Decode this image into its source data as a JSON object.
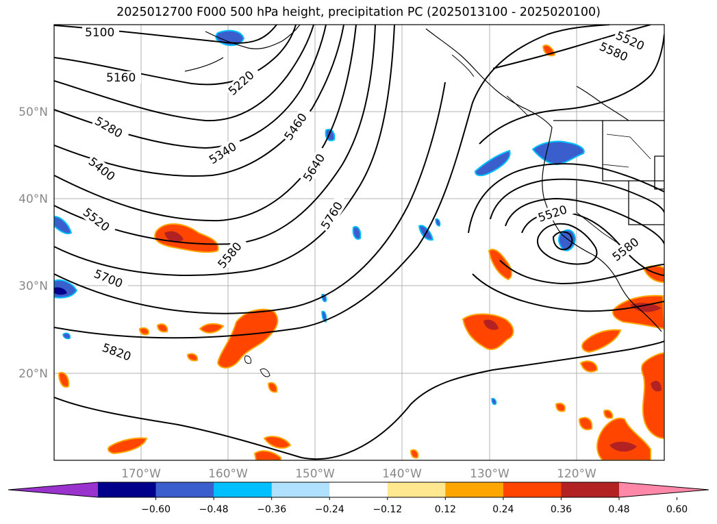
{
  "title": "2025012700 F000 500 hPa height, precipitation PC (2025013100 - 2025020100)",
  "map": {
    "lat_labels": [
      "50°N",
      "40°N",
      "30°N",
      "20°N"
    ],
    "lon_labels": [
      "170°W",
      "160°W",
      "150°W",
      "140°W",
      "130°W",
      "120°W"
    ],
    "contour_labels": [
      "5100",
      "5160",
      "5220",
      "5280",
      "5340",
      "5400",
      "5460",
      "5520",
      "5580",
      "5640",
      "5700",
      "5760",
      "5820",
      "5520",
      "5580",
      "5520",
      "5580"
    ]
  },
  "colorbar": {
    "ticks": [
      "−0.60",
      "−0.48",
      "−0.36",
      "−0.24",
      "−0.12",
      "0.12",
      "0.24",
      "0.36",
      "0.48",
      "0.60"
    ],
    "colors": [
      "#9a32cd",
      "#00008b",
      "#3a5fcd",
      "#00bfff",
      "#b0e2ff",
      "#ffffff",
      "#ffe88f",
      "#ffa500",
      "#ff4500",
      "#b22222",
      "#ff88a8"
    ]
  }
}
